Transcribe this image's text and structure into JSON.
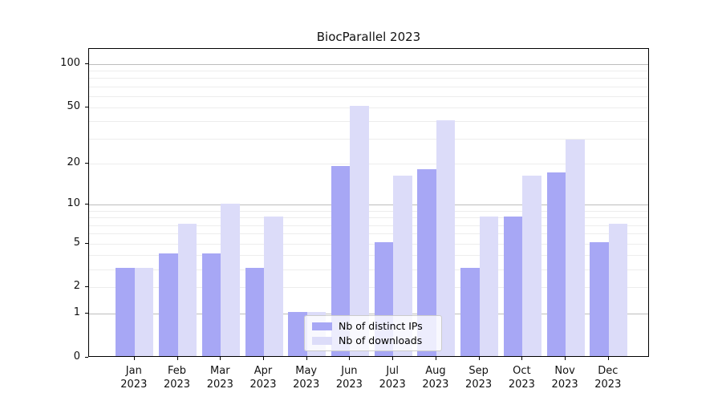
{
  "chart_data": {
    "type": "bar",
    "title": "BiocParallel 2023",
    "categories": [
      "Jan 2023",
      "Feb 2023",
      "Mar 2023",
      "Apr 2023",
      "May 2023",
      "Jun 2023",
      "Jul 2023",
      "Aug 2023",
      "Sep 2023",
      "Oct 2023",
      "Nov 2023",
      "Dec 2023"
    ],
    "x_tick_months": [
      "Jan",
      "Feb",
      "Mar",
      "Apr",
      "May",
      "Jun",
      "Jul",
      "Aug",
      "Sep",
      "Oct",
      "Nov",
      "Dec"
    ],
    "x_tick_year": "2023",
    "series": [
      {
        "name": "Nb of distinct IPs",
        "color": "#a7a7f5",
        "values": [
          3,
          4,
          4,
          3,
          1,
          19,
          5,
          18,
          3,
          8,
          17,
          5
        ]
      },
      {
        "name": "Nb of downloads",
        "color": "#dcdcf9",
        "values": [
          3,
          7,
          10,
          8,
          1,
          50,
          16,
          40,
          8,
          16,
          29,
          7
        ]
      }
    ],
    "xlabel": "",
    "ylabel": "",
    "y_scale": "log10(1+x)",
    "y_ticks": [
      0,
      1,
      2,
      5,
      10,
      20,
      50,
      100
    ],
    "y_major_gridlines": [
      1,
      10,
      100
    ],
    "y_minor_gridlines": [
      2,
      3,
      4,
      5,
      6,
      7,
      8,
      9,
      20,
      30,
      40,
      50,
      60,
      70,
      80,
      90
    ],
    "ylim": [
      0,
      130
    ],
    "grid": "horizontal",
    "legend_position": "lower-center-inside"
  },
  "colors": {
    "bar_distinct_ips": "#a7a7f5",
    "bar_downloads": "#dcdcf9",
    "gridline_major": "#bdbdbd",
    "gridline_minor": "#ededed",
    "axis_frame": "#000000",
    "text": "#111111",
    "legend_border": "#cccccc",
    "legend_background": "#ffffff"
  }
}
